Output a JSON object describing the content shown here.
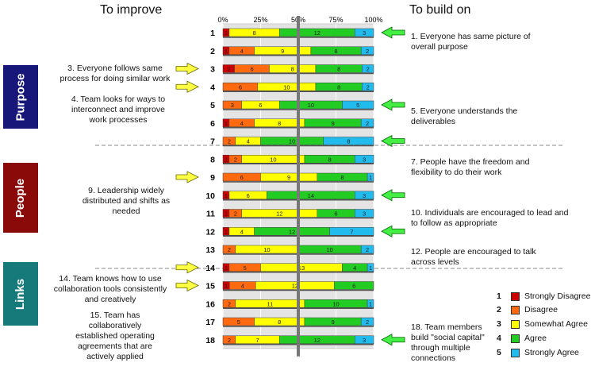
{
  "headers": {
    "left": "To improve",
    "right": "To build on"
  },
  "sections": [
    {
      "label": "Purpose",
      "color": "#17177a"
    },
    {
      "label": "People",
      "color": "#8a0a0a"
    },
    {
      "label": "Links",
      "color": "#177a7a"
    }
  ],
  "notes_left": [
    {
      "text": "3. Everyone follows same process for doing similar work",
      "row": 3
    },
    {
      "text": "4. Team looks for ways to interconnect and improve work processes",
      "row": 4
    },
    {
      "text": "9.  Leadership widely distributed and shifts as needed",
      "row": 9
    },
    {
      "text": "14. Team knows how to use collaboration tools consistently and creatively",
      "row": 14
    },
    {
      "text": "15. Team has collaboratively established operating agreements that are actively applied",
      "row": 15
    }
  ],
  "notes_right": [
    {
      "text": "1. Everyone has same picture of overall purpose",
      "row": 1,
      "arrow": true
    },
    {
      "text": "5. Everyone understands the deliverables",
      "row": 5,
      "arrow": true
    },
    {
      "text": "7. People have the freedom and flexibility to do their work",
      "row": 7,
      "arrow": true
    },
    {
      "text": "10. Individuals are encouraged to lead and to follow as appropriate",
      "row": 10,
      "arrow": true
    },
    {
      "text": "12. People are encouraged to talk across levels",
      "row": 12,
      "arrow": true
    },
    {
      "text": "18. Team members build \"social capital\" through multiple connections",
      "row": 18,
      "arrow": true
    }
  ],
  "chart_data": {
    "type": "bar",
    "orientation": "horizontal",
    "stacked": "100%",
    "categories": [
      "1",
      "2",
      "3",
      "4",
      "5",
      "6",
      "7",
      "8",
      "9",
      "10",
      "11",
      "12",
      "13",
      "14",
      "15",
      "16",
      "17",
      "18"
    ],
    "x_ticks": [
      "0%",
      "25%",
      "50%",
      "75%",
      "100%"
    ],
    "xlim": [
      0,
      100
    ],
    "reference_line": 50,
    "series": [
      {
        "name": "Strongly Disagree",
        "color": "#cc0000",
        "values": [
          1,
          1,
          2,
          0,
          0,
          1,
          0,
          1,
          0,
          1,
          1,
          1,
          0,
          1,
          1,
          0,
          0,
          0
        ]
      },
      {
        "name": "Disagree",
        "color": "#ff6a10",
        "values": [
          0,
          4,
          6,
          6,
          3,
          4,
          2,
          2,
          6,
          0,
          2,
          0,
          2,
          5,
          4,
          2,
          5,
          2
        ]
      },
      {
        "name": "Somewhat Agree",
        "color": "#ffff00",
        "values": [
          8,
          9,
          8,
          10,
          6,
          8,
          4,
          10,
          9,
          6,
          12,
          4,
          10,
          13,
          12,
          11,
          8,
          7
        ]
      },
      {
        "name": "Agree",
        "color": "#22cc22",
        "values": [
          12,
          8,
          8,
          8,
          10,
          9,
          10,
          8,
          8,
          14,
          6,
          12,
          10,
          4,
          6,
          10,
          9,
          12
        ]
      },
      {
        "name": "Strongly Agree",
        "color": "#22bbee",
        "values": [
          3,
          2,
          2,
          2,
          5,
          2,
          8,
          3,
          1,
          3,
          3,
          7,
          2,
          1,
          0,
          1,
          2,
          3
        ]
      }
    ],
    "legend": {
      "position": "bottom-right",
      "numbers": [
        "1",
        "2",
        "3",
        "4",
        "5"
      ]
    }
  }
}
